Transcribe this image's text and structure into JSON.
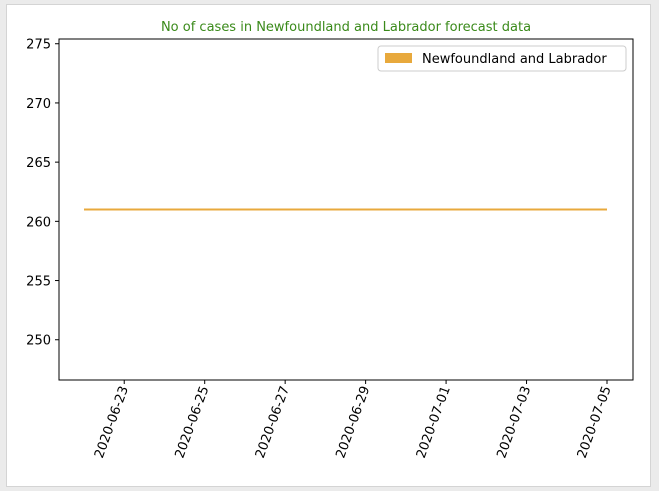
{
  "chart_data": {
    "type": "line",
    "title": "No of cases in Newfoundland and Labrador forecast data",
    "title_color": "#3a8a1a",
    "xlabel": "",
    "ylabel": "",
    "x_ticks": [
      "2020-06-23",
      "2020-06-25",
      "2020-06-27",
      "2020-06-29",
      "2020-07-01",
      "2020-07-03",
      "2020-07-05"
    ],
    "y_ticks": [
      250,
      255,
      260,
      265,
      270,
      275
    ],
    "ylim": [
      246.6,
      275.4
    ],
    "xlim": [
      "2020-06-21",
      "2020-07-05"
    ],
    "grid": false,
    "legend": "top-right",
    "series": [
      {
        "name": "Newfoundland and Labrador",
        "color": "#e8a93c",
        "x": [
          "2020-06-22",
          "2020-06-23",
          "2020-06-24",
          "2020-06-25",
          "2020-06-26",
          "2020-06-27",
          "2020-06-28",
          "2020-06-29",
          "2020-06-30",
          "2020-07-01",
          "2020-07-02",
          "2020-07-03",
          "2020-07-04",
          "2020-07-05"
        ],
        "values": [
          261,
          261,
          261,
          261,
          261,
          261,
          261,
          261,
          261,
          261,
          261,
          261,
          261,
          261
        ]
      }
    ]
  }
}
